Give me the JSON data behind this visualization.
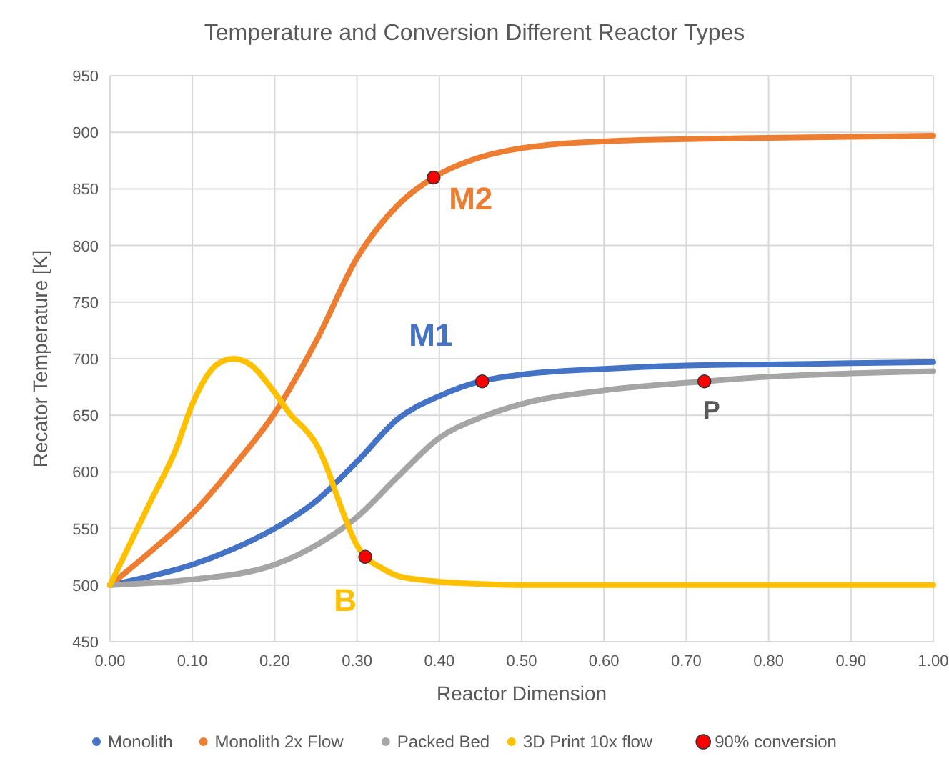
{
  "chart_data": {
    "type": "line",
    "title": "Temperature and Conversion Different Reactor Types",
    "xlabel": "Reactor Dimension",
    "ylabel": "Recator Temperature  [K]",
    "xlim": [
      0,
      1
    ],
    "xticks": [
      {
        "value": 0,
        "label": "0.00"
      },
      {
        "value": 0.1,
        "label": "0.10"
      },
      {
        "value": 0.2,
        "label": "0.20"
      },
      {
        "value": 0.3,
        "label": "0.30"
      },
      {
        "value": 0.4,
        "label": "0.40"
      },
      {
        "value": 0.5,
        "label": "0.50"
      },
      {
        "value": 0.6,
        "label": "0.60"
      },
      {
        "value": 0.7,
        "label": "0.70"
      },
      {
        "value": 0.8,
        "label": "0.80"
      },
      {
        "value": 0.9,
        "label": "0.90"
      },
      {
        "value": 1,
        "label": "1.00"
      }
    ],
    "ylim": [
      450,
      950
    ],
    "yticks": [
      450,
      500,
      550,
      600,
      650,
      700,
      750,
      800,
      850,
      900,
      950
    ],
    "grid": true,
    "legend": "bottom",
    "line_style": "solid",
    "series": [
      {
        "name": "Monolith",
        "color": "#4472c4",
        "x": [
          0,
          0.05,
          0.1,
          0.15,
          0.2,
          0.25,
          0.3,
          0.35,
          0.4,
          0.45,
          0.5,
          0.6,
          0.7,
          0.8,
          0.9,
          1
        ],
        "values": [
          500,
          508,
          518,
          532,
          550,
          574,
          609,
          647,
          667,
          680,
          686,
          691,
          694,
          695,
          696,
          697
        ]
      },
      {
        "name": "Monolith 2x Flow",
        "color": "#ed7d31",
        "x": [
          0,
          0.05,
          0.1,
          0.15,
          0.2,
          0.25,
          0.3,
          0.35,
          0.393,
          0.45,
          0.5,
          0.6,
          0.7,
          0.8,
          0.9,
          1
        ],
        "values": [
          500,
          530,
          563,
          605,
          652,
          715,
          789,
          836,
          860,
          878,
          886,
          892,
          894,
          895,
          896,
          897
        ]
      },
      {
        "name": "Packed Bed",
        "color": "#a5a5a5",
        "x": [
          0,
          0.1,
          0.2,
          0.25,
          0.3,
          0.35,
          0.4,
          0.45,
          0.5,
          0.6,
          0.722,
          0.8,
          0.9,
          1
        ],
        "values": [
          500,
          505,
          518,
          535,
          560,
          596,
          630,
          648,
          660,
          672,
          680,
          684,
          687,
          689
        ]
      },
      {
        "name": "3D Print 10x flow",
        "color": "#ffc000",
        "x": [
          0,
          0.02,
          0.05,
          0.08,
          0.1,
          0.13,
          0.15,
          0.17,
          0.2,
          0.22,
          0.24,
          0.25,
          0.26,
          0.28,
          0.3,
          0.31,
          0.33,
          0.35,
          0.4,
          0.45,
          0.5,
          1
        ],
        "values": [
          500,
          530,
          575,
          620,
          660,
          695,
          700,
          695,
          670,
          650,
          635,
          625,
          610,
          570,
          535,
          525,
          515,
          508,
          503,
          501,
          500,
          500
        ]
      },
      {
        "name": "90% conversion",
        "type": "scatter",
        "color": "#ff0000",
        "marker": "circle",
        "x": [
          0.452,
          0.393,
          0.722,
          0.31
        ],
        "values": [
          680,
          860,
          680,
          525
        ]
      }
    ],
    "annotations": [
      "M1",
      "M2",
      "P",
      "B"
    ]
  }
}
